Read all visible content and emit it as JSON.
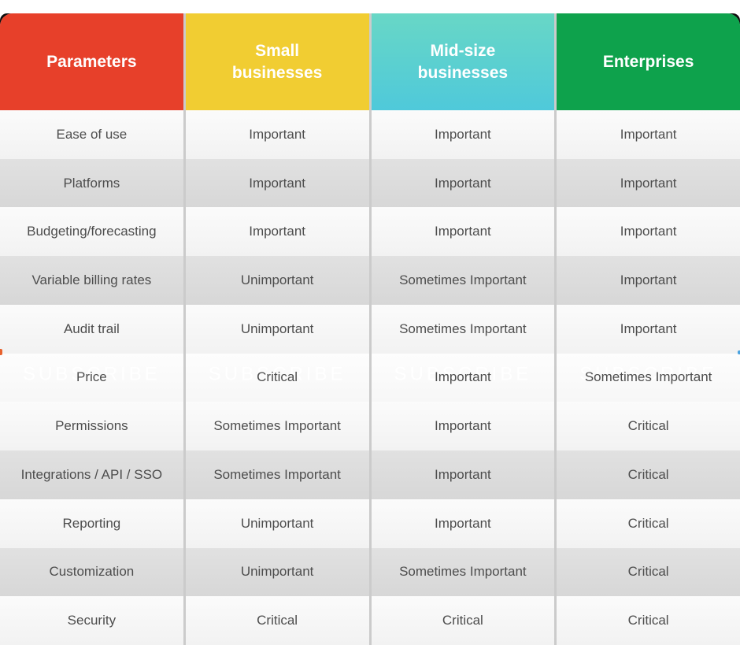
{
  "chart_data": {
    "type": "table",
    "title": "",
    "columns": [
      {
        "label": "Parameters",
        "bg": "#e7402a"
      },
      {
        "label": "Small businesses",
        "bg": "#f1cd32"
      },
      {
        "label": "Mid-size businesses",
        "bg": "#68d7c6",
        "bg_bottom": "#4fc9da"
      },
      {
        "label": "Enterprises",
        "bg": "#0ea24c"
      }
    ],
    "rows": [
      [
        "Ease of use",
        "Important",
        "Important",
        "Important"
      ],
      [
        "Platforms",
        "Important",
        "Important",
        "Important"
      ],
      [
        "Budgeting/forecasting",
        "Important",
        "Important",
        "Important"
      ],
      [
        "Variable billing rates",
        "Unimportant",
        "Sometimes Important",
        "Important"
      ],
      [
        "Audit trail",
        "Unimportant",
        "Sometimes Important",
        "Important"
      ],
      [
        "Price",
        "Critical",
        "Important",
        "Sometimes Important"
      ],
      [
        "Permissions",
        "Sometimes Important",
        "Important",
        "Critical"
      ],
      [
        "Integrations / API / SSO",
        "Sometimes Important",
        "Important",
        "Critical"
      ],
      [
        "Reporting",
        "Unimportant",
        "Important",
        "Critical"
      ],
      [
        "Customization",
        "Unimportant",
        "Sometimes Important",
        "Critical"
      ],
      [
        "Security",
        "Critical",
        "Critical",
        "Critical"
      ]
    ],
    "value_scale": [
      "Unimportant",
      "Sometimes Important",
      "Important",
      "Critical"
    ],
    "row_shading": "alternating light/dark, watermark row lightened",
    "watermark": {
      "text": "SUBSCRIBE",
      "row_index": 5
    },
    "colors": {
      "body_text": "#4d4d4d",
      "header_text": "#ffffff",
      "divider": "#cbcbcb",
      "row_light": "#f7f7f7",
      "row_dark": "#dcdcdc"
    }
  }
}
